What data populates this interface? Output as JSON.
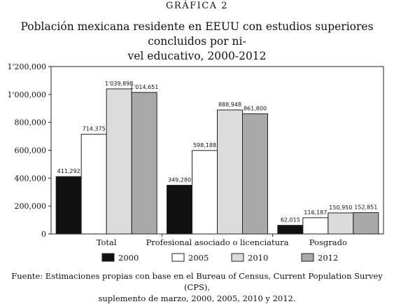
{
  "figure": {
    "label": "GRÁFICA 2",
    "title_line1": "Población mexicana residente en EEUU con estudios superiores concluidos por ni-",
    "title_line2": "vel educativo, 2000-2012",
    "source_line1": "Fuente: Estimaciones propias con base en el  Bureau of Census, Current Population Survey (CPS),",
    "source_line2": "suplemento de marzo,  2000, 2005, 2010 y 2012."
  },
  "chart_data": {
    "type": "bar",
    "title": "Población mexicana residente en EEUU con estudios superiores concluidos por nivel educativo, 2000-2012",
    "xlabel": "",
    "ylabel": "",
    "categories": [
      "Total",
      "Profesional asociado o licenciatura",
      "Posgrado"
    ],
    "series": [
      {
        "name": "2000",
        "values": [
          411292,
          349280,
          62015
        ],
        "labels": [
          "411,292",
          "349,280",
          "62,015"
        ],
        "color": "#111111"
      },
      {
        "name": "2005",
        "values": [
          714375,
          598188,
          116187
        ],
        "labels": [
          "714,375",
          "598,188",
          "116,187"
        ],
        "color": "#ffffff"
      },
      {
        "name": "2010",
        "values": [
          1039898,
          888948,
          150950
        ],
        "labels": [
          "1'039,898",
          "888,948",
          "150,950"
        ],
        "color": "#dcdcdc"
      },
      {
        "name": "2012",
        "values": [
          1014651,
          861800,
          152851
        ],
        "labels": [
          "1'014,651",
          "861,800",
          "152,851"
        ],
        "color": "#a9a9a9"
      }
    ],
    "ylim": [
      0,
      1200000
    ],
    "yticks": [
      0,
      200000,
      400000,
      600000,
      800000,
      1000000,
      1200000
    ],
    "ytick_labels": [
      "0",
      "200,000",
      "400,000",
      "600,000",
      "800,000",
      "1'000,000",
      "1'200,000"
    ],
    "grid": false,
    "legend_position": "bottom"
  }
}
